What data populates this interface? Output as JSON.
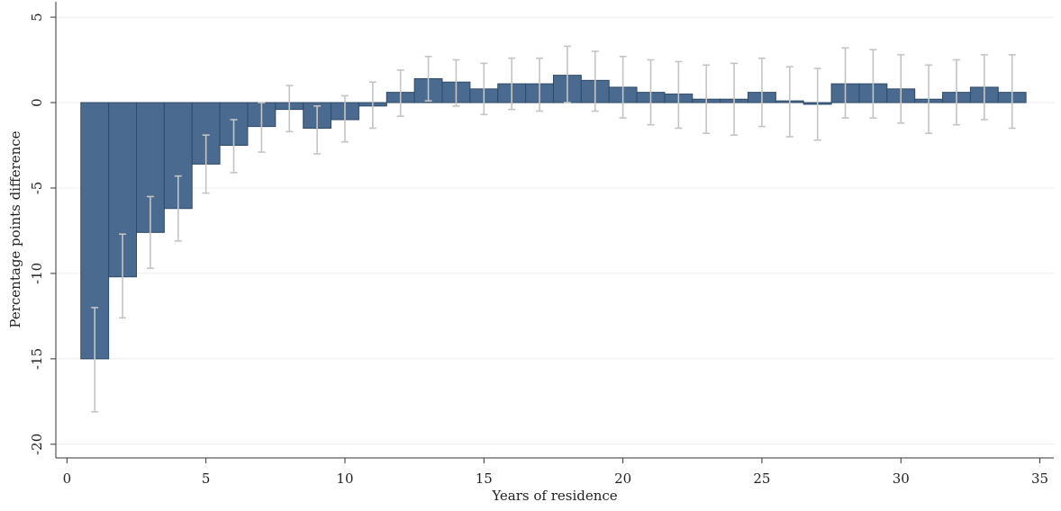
{
  "chart_data": {
    "type": "bar",
    "xlabel": "Years of residence",
    "ylabel": "Percentage points difference",
    "x": [
      1,
      2,
      3,
      4,
      5,
      6,
      7,
      8,
      9,
      10,
      11,
      12,
      13,
      14,
      15,
      16,
      17,
      18,
      19,
      20,
      21,
      22,
      23,
      24,
      25,
      26,
      27,
      28,
      29,
      30,
      31,
      32,
      33,
      34
    ],
    "values": [
      -15.0,
      -10.2,
      -7.6,
      -6.2,
      -3.6,
      -2.5,
      -1.4,
      -0.4,
      -1.5,
      -1.0,
      -0.2,
      0.6,
      1.4,
      1.2,
      0.8,
      1.1,
      1.1,
      1.6,
      1.3,
      0.9,
      0.6,
      0.5,
      0.2,
      0.2,
      0.6,
      0.1,
      -0.1,
      1.1,
      1.1,
      0.8,
      0.2,
      0.6,
      0.9,
      0.6
    ],
    "lower": [
      -18.1,
      -12.6,
      -9.7,
      -8.1,
      -5.3,
      -4.1,
      -2.9,
      -1.7,
      -3.0,
      -2.3,
      -1.5,
      -0.8,
      0.1,
      -0.2,
      -0.7,
      -0.4,
      -0.5,
      0.0,
      -0.5,
      -0.9,
      -1.3,
      -1.5,
      -1.8,
      -1.9,
      -1.4,
      -2.0,
      -2.2,
      -0.9,
      -0.9,
      -1.2,
      -1.8,
      -1.3,
      -1.0,
      -1.5
    ],
    "upper": [
      -12.0,
      -7.7,
      -5.5,
      -4.3,
      -1.9,
      -1.0,
      0.0,
      1.0,
      -0.2,
      0.4,
      1.2,
      1.9,
      2.7,
      2.5,
      2.3,
      2.6,
      2.6,
      3.3,
      3.0,
      2.7,
      2.5,
      2.4,
      2.2,
      2.3,
      2.6,
      2.1,
      2.0,
      3.2,
      3.1,
      2.8,
      2.2,
      2.5,
      2.8,
      2.8
    ],
    "color": "#4a6b8f",
    "error_color": "#c4c4c4",
    "xlim": [
      -0.4,
      35.5
    ],
    "xticks": [
      0,
      5,
      10,
      15,
      20,
      25,
      30,
      35
    ],
    "ylim": [
      -20.8,
      5.9
    ],
    "yticks": [
      -20,
      -15,
      -10,
      -5,
      0,
      5
    ],
    "grid": true
  }
}
